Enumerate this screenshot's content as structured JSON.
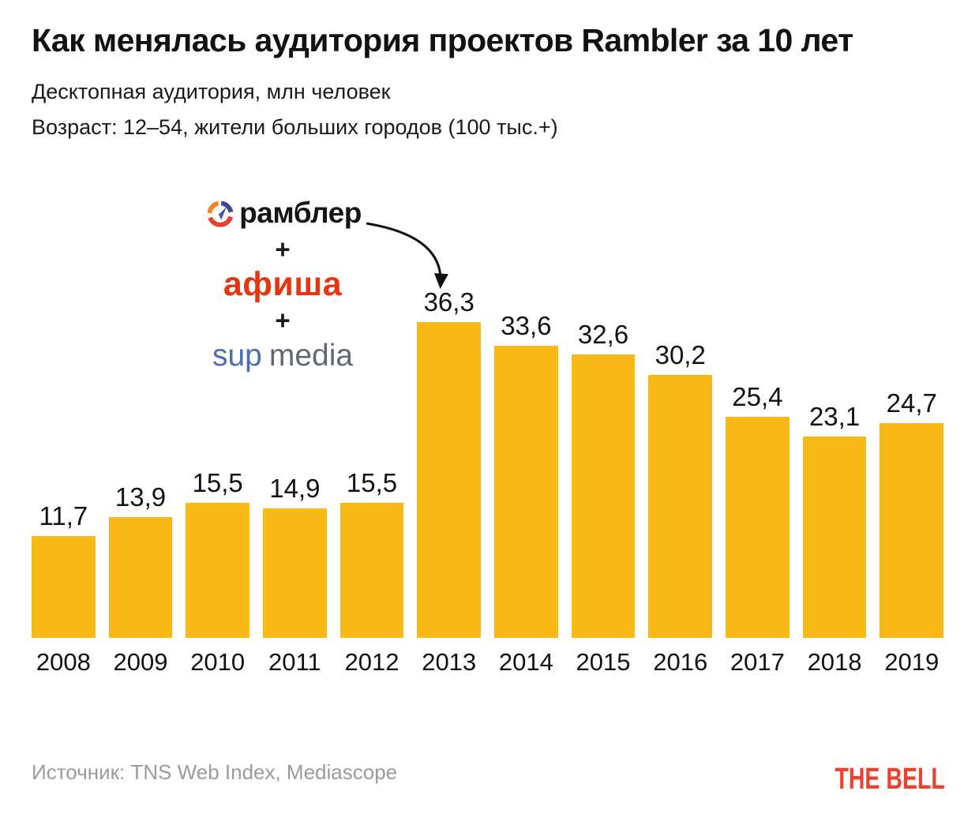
{
  "header": {
    "title": "Как менялась аудитория проектов Rambler за 10 лет",
    "subtitle1": "Десктопная аудитория, млн человек",
    "subtitle2": "Возраст: 12–54, жители больших городов (100 тыс.+)"
  },
  "annotation": {
    "rambler_label": "рамблер",
    "plus1": "+",
    "afisha_label": "афиша",
    "plus2": "+",
    "sup_label": "sup",
    "media_label": "media",
    "afisha_color": "#E7350F",
    "sup_color": "#4a6db4",
    "media_color": "#616874",
    "points_to_year": "2013"
  },
  "chart_data": {
    "type": "bar",
    "categories": [
      "2008",
      "2009",
      "2010",
      "2011",
      "2012",
      "2013",
      "2014",
      "2015",
      "2016",
      "2017",
      "2018",
      "2019"
    ],
    "values": [
      11.7,
      13.9,
      15.5,
      14.9,
      15.5,
      36.3,
      33.6,
      32.6,
      30.2,
      25.4,
      23.1,
      24.7
    ],
    "value_labels": [
      "11,7",
      "13,9",
      "15,5",
      "14,9",
      "15,5",
      "36,3",
      "33,6",
      "32,6",
      "30,2",
      "25,4",
      "23,1",
      "24,7"
    ],
    "title": "Как менялась аудитория проектов Rambler за 10 лет",
    "xlabel": "",
    "ylabel": "Десктопная аудитория, млн человек",
    "ylim": [
      0,
      36.3
    ],
    "grid": false,
    "legend": false,
    "bar_color": "#F9B916",
    "annotation_note": "рамблер + афиша + sup media (слияние, стрелка указывает на 2013 год)"
  },
  "footer": {
    "source": "Источник: TNS Web Index, Mediascope",
    "brand": "THE BELL",
    "brand_color": "#F23F2D"
  }
}
